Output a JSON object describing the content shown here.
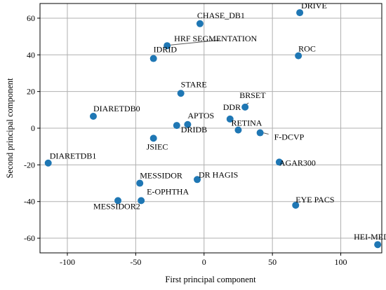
{
  "chart_data": {
    "type": "scatter",
    "xlabel": "First principal component",
    "ylabel": "Second principal component",
    "xlim": [
      -120,
      130
    ],
    "ylim": [
      -68,
      68
    ],
    "x_ticks": [
      "-100",
      "-50",
      "0",
      "50",
      "100"
    ],
    "x_tick_values": [
      -100,
      -50,
      0,
      50,
      100
    ],
    "y_ticks": [
      "60",
      "40",
      "20",
      "0",
      "-20",
      "-40",
      "-60"
    ],
    "y_tick_values": [
      60,
      40,
      20,
      0,
      -20,
      -40,
      -60
    ],
    "grid": true,
    "marker_color": "#1f77b4",
    "points": [
      {
        "label": "DRIVE",
        "x": 70,
        "y": 63
      },
      {
        "label": "CHASE_DB1",
        "x": -3,
        "y": 57
      },
      {
        "label": "HRF SEGMENTATION",
        "x": -27,
        "y": 45
      },
      {
        "label": "IDRID",
        "x": -37,
        "y": 38
      },
      {
        "label": "ROC",
        "x": 69,
        "y": 39.5
      },
      {
        "label": "STARE",
        "x": -17,
        "y": 19
      },
      {
        "label": "BRSET",
        "x": 30,
        "y": 11.5
      },
      {
        "label": "DDR",
        "x": 19,
        "y": 5
      },
      {
        "label": "DIARETDB0",
        "x": -81,
        "y": 6.5
      },
      {
        "label": "APTOS",
        "x": -12,
        "y": 2
      },
      {
        "label": "DRIDB",
        "x": -20,
        "y": 1.5
      },
      {
        "label": "RETINA",
        "x": 25,
        "y": -1
      },
      {
        "label": "F-DCVP",
        "x": 41,
        "y": -2.5
      },
      {
        "label": "JSIEC",
        "x": -37,
        "y": -5.5
      },
      {
        "label": "DIARETDB1",
        "x": -114,
        "y": -19
      },
      {
        "label": "AGAR300",
        "x": 55,
        "y": -18.5
      },
      {
        "label": "MESSIDOR",
        "x": -47,
        "y": -30
      },
      {
        "label": "DR HAGIS",
        "x": -5,
        "y": -28
      },
      {
        "label": "E-OPHTHA",
        "x": -46,
        "y": -39.5
      },
      {
        "label": "MESSIDOR2",
        "x": -63,
        "y": -39.5
      },
      {
        "label": "EYE PACS",
        "x": 67,
        "y": -42
      },
      {
        "label": "HEI-MED",
        "x": 127,
        "y": -63.5
      }
    ]
  }
}
